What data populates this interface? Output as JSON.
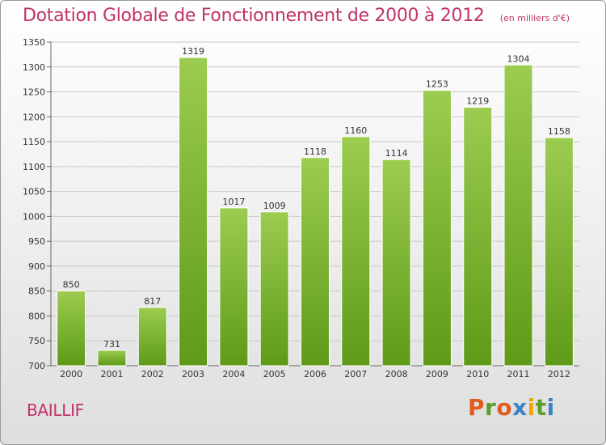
{
  "title": "Dotation Globale de Fonctionnement de 2000 à 2012",
  "subtitle": "(en milliers d'€)",
  "commune": "BAILLIF",
  "logo": {
    "text": "Proxiti",
    "colors": [
      "#e35b1e",
      "#5a9e2a",
      "#e35b1e",
      "#3a84c6",
      "#f0a500",
      "#5a9e2a",
      "#3a84c6"
    ]
  },
  "colors": {
    "bar_top": "#9ccc50",
    "bar_bottom": "#5e9a18",
    "title": "#c0336b",
    "grid": "#c8c8c8"
  },
  "chart_data": {
    "type": "bar",
    "categories": [
      "2000",
      "2001",
      "2002",
      "2003",
      "2004",
      "2005",
      "2006",
      "2007",
      "2008",
      "2009",
      "2010",
      "2011",
      "2012"
    ],
    "values": [
      850,
      731,
      817,
      1319,
      1017,
      1009,
      1118,
      1160,
      1114,
      1253,
      1219,
      1304,
      1158
    ],
    "ylim": [
      700,
      1350
    ],
    "yticks": [
      700,
      750,
      800,
      850,
      900,
      950,
      1000,
      1050,
      1100,
      1150,
      1200,
      1250,
      1300,
      1350
    ],
    "grid": "horizontal",
    "legend": "none"
  }
}
